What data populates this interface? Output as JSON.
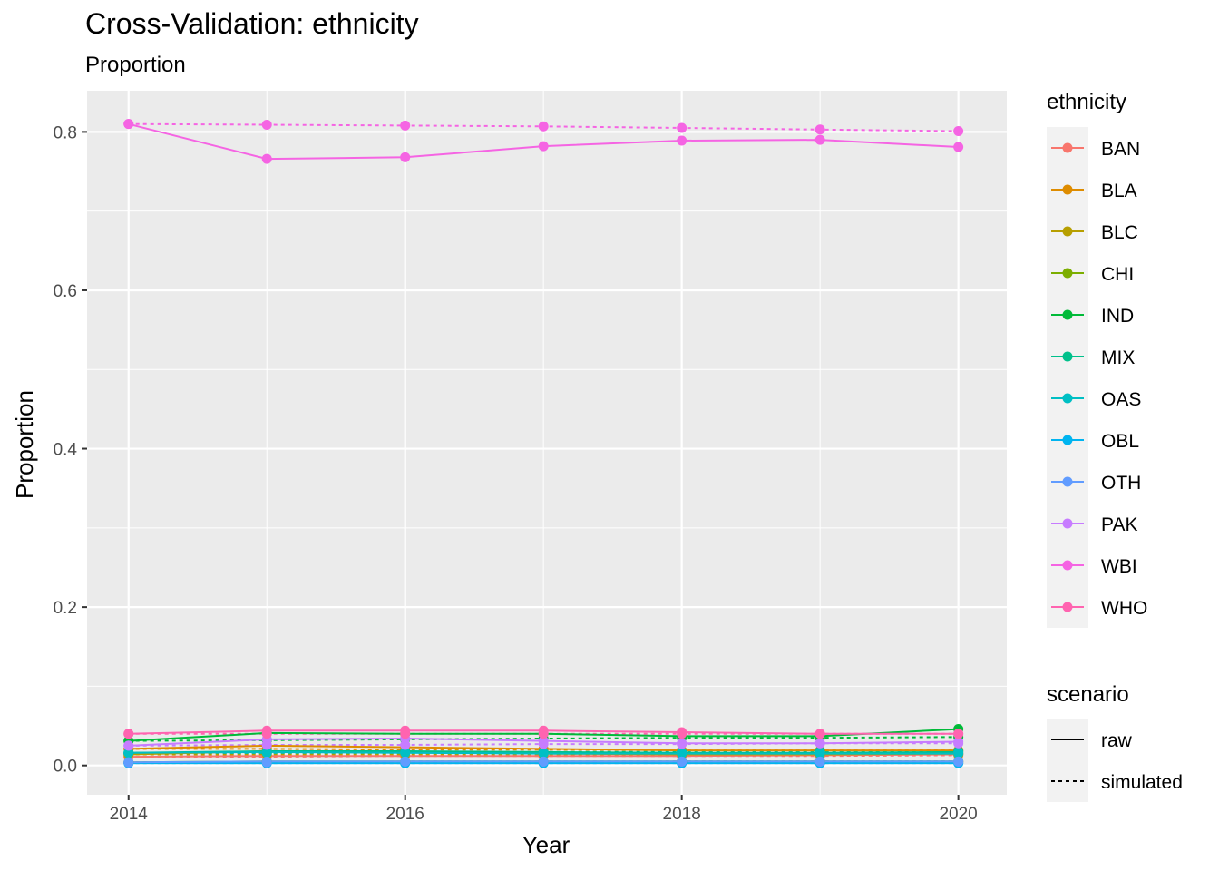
{
  "chart_data": {
    "type": "line",
    "title": "Cross-Validation: ethnicity",
    "subtitle": "Proportion",
    "xlabel": "Year",
    "ylabel": "Proportion",
    "x": [
      2014,
      2015,
      2016,
      2017,
      2018,
      2019,
      2020
    ],
    "xlim": [
      2013.7,
      2020.35
    ],
    "ylim": [
      -0.037,
      0.852
    ],
    "x_ticks": [
      2014,
      2016,
      2018,
      2020
    ],
    "y_ticks": [
      0.0,
      0.2,
      0.4,
      0.6,
      0.8
    ],
    "x_tick_labels": [
      "2014",
      "2016",
      "2018",
      "2020"
    ],
    "y_tick_labels": [
      "0.0",
      "0.2",
      "0.4",
      "0.6",
      "0.8"
    ],
    "grid": true,
    "legend_position": "right",
    "legend": {
      "color_title": "ethnicity",
      "linetype_title": "scenario",
      "linetype_entries": [
        {
          "label": "raw",
          "dash": "solid"
        },
        {
          "label": "simulated",
          "dash": "dotted"
        }
      ]
    },
    "series": [
      {
        "name": "BAN",
        "color": "#F8766D",
        "raw": [
          0.011,
          0.012,
          0.012,
          0.012,
          0.012,
          0.013,
          0.014
        ],
        "simulated": [
          0.011,
          0.011,
          0.012,
          0.012,
          0.012,
          0.012,
          0.013
        ]
      },
      {
        "name": "BLA",
        "color": "#DE8C00",
        "raw": [
          0.021,
          0.025,
          0.023,
          0.021,
          0.019,
          0.019,
          0.019
        ],
        "simulated": [
          0.021,
          0.021,
          0.02,
          0.02,
          0.019,
          0.019,
          0.019
        ]
      },
      {
        "name": "BLC",
        "color": "#B79F00",
        "raw": [
          0.014,
          0.018,
          0.017,
          0.015,
          0.014,
          0.014,
          0.015
        ],
        "simulated": [
          0.014,
          0.014,
          0.014,
          0.014,
          0.014,
          0.014,
          0.014
        ]
      },
      {
        "name": "CHI",
        "color": "#7CAE00",
        "raw": [
          0.004,
          0.005,
          0.005,
          0.005,
          0.005,
          0.005,
          0.005
        ],
        "simulated": [
          0.004,
          0.004,
          0.004,
          0.004,
          0.005,
          0.005,
          0.005
        ]
      },
      {
        "name": "IND",
        "color": "#00BA38",
        "raw": [
          0.031,
          0.041,
          0.04,
          0.04,
          0.037,
          0.037,
          0.046
        ],
        "simulated": [
          0.031,
          0.032,
          0.033,
          0.034,
          0.035,
          0.035,
          0.036
        ]
      },
      {
        "name": "MIX",
        "color": "#00C08B",
        "raw": [
          0.016,
          0.018,
          0.018,
          0.017,
          0.016,
          0.016,
          0.017
        ],
        "simulated": [
          0.016,
          0.016,
          0.017,
          0.017,
          0.017,
          0.018,
          0.018
        ]
      },
      {
        "name": "OAS",
        "color": "#00BFC4",
        "raw": [
          0.016,
          0.017,
          0.016,
          0.015,
          0.015,
          0.015,
          0.015
        ],
        "simulated": [
          0.016,
          0.016,
          0.016,
          0.016,
          0.016,
          0.016,
          0.016
        ]
      },
      {
        "name": "OBL",
        "color": "#00B4F0",
        "raw": [
          0.003,
          0.003,
          0.003,
          0.003,
          0.003,
          0.003,
          0.003
        ],
        "simulated": [
          0.003,
          0.003,
          0.003,
          0.003,
          0.003,
          0.003,
          0.003
        ]
      },
      {
        "name": "OTH",
        "color": "#619CFF",
        "raw": [
          0.004,
          0.005,
          0.005,
          0.005,
          0.005,
          0.005,
          0.005
        ],
        "simulated": [
          0.004,
          0.004,
          0.005,
          0.005,
          0.005,
          0.005,
          0.005
        ]
      },
      {
        "name": "PAK",
        "color": "#C77CFF",
        "raw": [
          0.025,
          0.033,
          0.034,
          0.031,
          0.028,
          0.028,
          0.03
        ],
        "simulated": [
          0.025,
          0.026,
          0.026,
          0.027,
          0.027,
          0.028,
          0.028
        ]
      },
      {
        "name": "WBI",
        "color": "#F564E3",
        "raw": [
          0.81,
          0.766,
          0.768,
          0.782,
          0.789,
          0.79,
          0.781
        ],
        "simulated": [
          0.81,
          0.809,
          0.808,
          0.807,
          0.805,
          0.803,
          0.801
        ]
      },
      {
        "name": "WHO",
        "color": "#FF64B0",
        "raw": [
          0.04,
          0.044,
          0.044,
          0.044,
          0.042,
          0.04,
          0.04
        ],
        "simulated": [
          0.04,
          0.04,
          0.04,
          0.04,
          0.04,
          0.04,
          0.04
        ]
      }
    ]
  }
}
